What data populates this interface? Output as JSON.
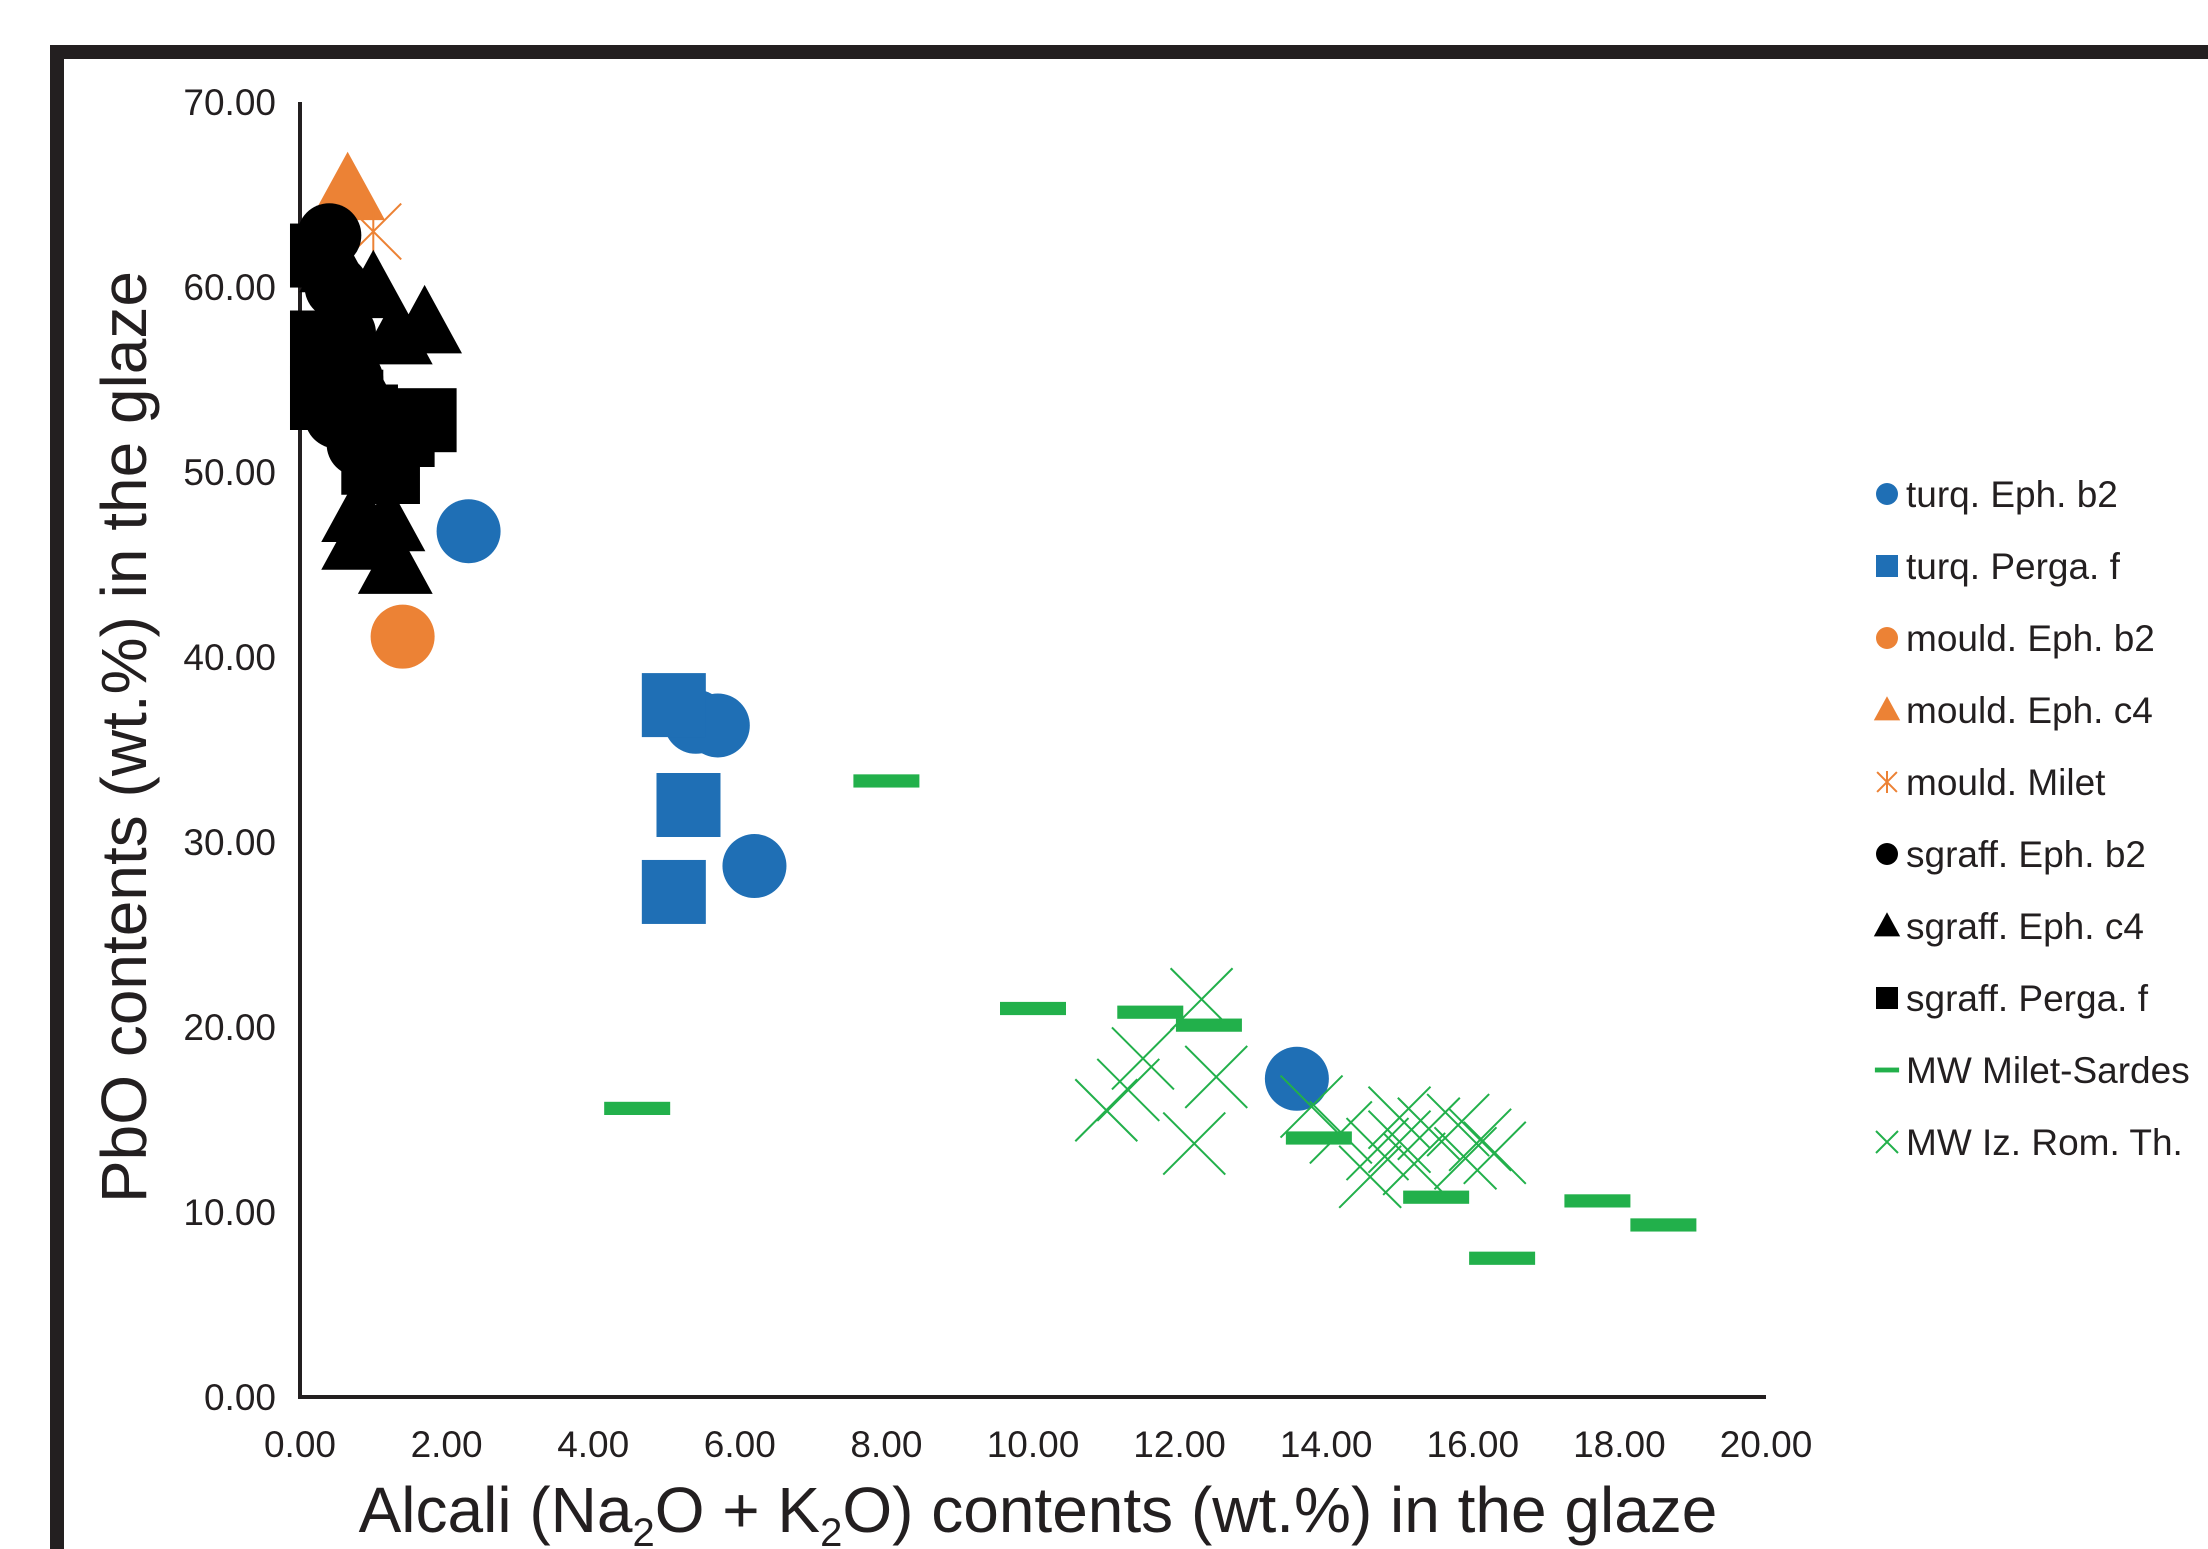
{
  "chart_data": {
    "type": "scatter",
    "title": "",
    "xlabel_parts": [
      {
        "t": "Alcali (Na",
        "sub": false
      },
      {
        "t": "2",
        "sub": true
      },
      {
        "t": "O + K",
        "sub": false
      },
      {
        "t": "2",
        "sub": true
      },
      {
        "t": "O) contents (wt.%) in the glaze",
        "sub": false
      }
    ],
    "ylabel": "PbO contents (wt.%) in the glaze",
    "xlim": [
      0,
      20
    ],
    "ylim": [
      0,
      70
    ],
    "xticks": [
      "0.00",
      "2.00",
      "4.00",
      "6.00",
      "8.00",
      "10.00",
      "12.00",
      "14.00",
      "16.00",
      "18.00",
      "20.00"
    ],
    "yticks": [
      "0.00",
      "10.00",
      "20.00",
      "30.00",
      "40.00",
      "50.00",
      "60.00",
      "70.00"
    ],
    "legend_position": "right",
    "series": [
      {
        "name": "turq. Eph. b2",
        "color": "#1f6fb5",
        "marker": "circle",
        "points": [
          [
            2.3,
            46.8
          ],
          [
            5.4,
            36.5
          ],
          [
            5.7,
            36.3
          ],
          [
            6.2,
            28.7
          ],
          [
            13.6,
            17.2
          ]
        ]
      },
      {
        "name": "turq. Perga. f",
        "color": "#1f6fb5",
        "marker": "square",
        "points": [
          [
            5.1,
            37.4
          ],
          [
            5.3,
            32.0
          ],
          [
            5.1,
            27.3
          ]
        ]
      },
      {
        "name": "mould. Eph. b2",
        "color": "#ec8235",
        "marker": "circle",
        "points": [
          [
            1.4,
            41.1
          ]
        ]
      },
      {
        "name": "mould. Eph. c4",
        "color": "#ec8235",
        "marker": "triangle",
        "points": [
          [
            0.65,
            65.2
          ]
        ]
      },
      {
        "name": "mould. Milet",
        "color": "#ec8235",
        "marker": "asterisk",
        "points": [
          [
            1.0,
            63.0
          ]
        ]
      },
      {
        "name": "sgraff. Eph. b2",
        "color": "#000000",
        "marker": "circle",
        "points": [
          [
            0.4,
            62.8
          ],
          [
            0.5,
            60.0
          ],
          [
            0.6,
            57.5
          ],
          [
            0.7,
            55.0
          ],
          [
            0.5,
            53.0
          ],
          [
            0.8,
            51.5
          ]
        ]
      },
      {
        "name": "sgraff. Eph. c4",
        "color": "#000000",
        "marker": "triangle",
        "points": [
          [
            0.5,
            61.3
          ],
          [
            1.0,
            59.9
          ],
          [
            1.7,
            58.0
          ],
          [
            1.3,
            57.4
          ],
          [
            0.9,
            54.6
          ],
          [
            1.1,
            51.2
          ],
          [
            0.8,
            47.8
          ],
          [
            1.2,
            47.3
          ],
          [
            0.8,
            46.3
          ],
          [
            1.3,
            45.0
          ]
        ]
      },
      {
        "name": "sgraff. Perga. f",
        "color": "#000000",
        "marker": "square",
        "points": [
          [
            0.3,
            61.7
          ],
          [
            0.3,
            57.0
          ],
          [
            0.5,
            56.0
          ],
          [
            0.3,
            54.0
          ],
          [
            0.7,
            53.8
          ],
          [
            0.9,
            53.0
          ],
          [
            1.1,
            52.2
          ],
          [
            1.7,
            52.8
          ],
          [
            1.4,
            52.0
          ],
          [
            1.0,
            50.5
          ],
          [
            1.2,
            50.0
          ]
        ]
      },
      {
        "name": "MW Milet-Sardes",
        "color": "#22b04b",
        "marker": "dash",
        "points": [
          [
            8.0,
            33.3
          ],
          [
            10.0,
            21.0
          ],
          [
            11.6,
            20.8
          ],
          [
            12.4,
            20.1
          ],
          [
            4.6,
            15.6
          ],
          [
            13.9,
            14.0
          ],
          [
            15.5,
            10.8
          ],
          [
            17.7,
            10.6
          ],
          [
            18.6,
            9.3
          ],
          [
            16.4,
            7.5
          ]
        ]
      },
      {
        "name": "MW Iz. Rom. Th.",
        "color": "#22b04b",
        "marker": "x",
        "points": [
          [
            12.3,
            21.5
          ],
          [
            11.5,
            18.3
          ],
          [
            11.3,
            16.6
          ],
          [
            12.5,
            17.3
          ],
          [
            11.0,
            15.5
          ],
          [
            12.2,
            13.7
          ],
          [
            13.8,
            15.7
          ],
          [
            14.2,
            14.3
          ],
          [
            14.7,
            13.4
          ],
          [
            15.0,
            15.1
          ],
          [
            15.4,
            14.5
          ],
          [
            15.8,
            14.7
          ],
          [
            16.1,
            13.9
          ],
          [
            15.2,
            12.6
          ],
          [
            14.6,
            11.9
          ],
          [
            15.9,
            12.9
          ],
          [
            16.3,
            13.2
          ],
          [
            15.0,
            13.8
          ]
        ]
      }
    ]
  }
}
